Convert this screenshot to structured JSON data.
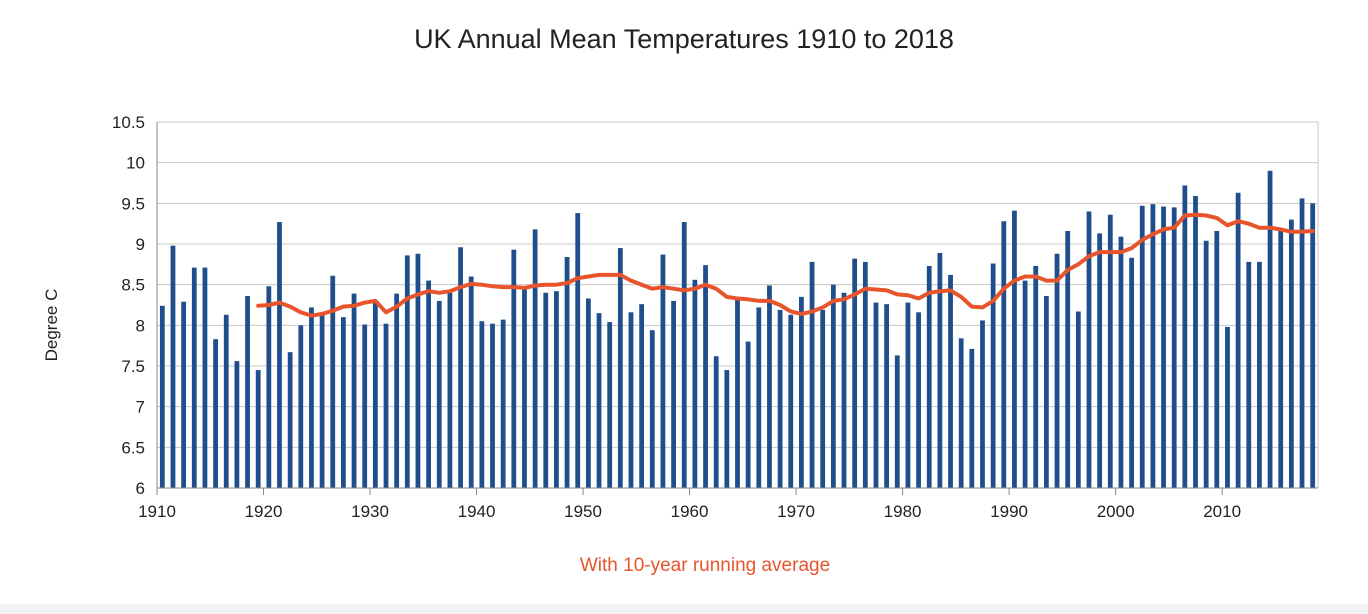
{
  "colors": {
    "bar": "#1f4e8c",
    "line": "#e8542b",
    "grid": "#c8c8c8",
    "note": "#e8542b"
  },
  "chart_data": {
    "type": "bar",
    "title": "UK Annual Mean Temperatures 1910 to 2018",
    "ylabel": "Degree C",
    "xlabel": "",
    "note": "With 10-year running average",
    "ylim": [
      6,
      10.5
    ],
    "yticks": [
      "10.5",
      "10",
      "9.5",
      "9",
      "8.5",
      "8",
      "7.5",
      "7",
      "6.5",
      "6"
    ],
    "xticks": [
      "1910",
      "1920",
      "1930",
      "1940",
      "1950",
      "1960",
      "1970",
      "1980",
      "1990",
      "2000",
      "2010"
    ],
    "grid": true,
    "series": [
      {
        "type": "bar",
        "start_year": 1910,
        "values": [
          8.24,
          8.98,
          8.29,
          8.71,
          8.71,
          7.83,
          8.13,
          7.56,
          8.36,
          7.45,
          8.48,
          9.27,
          7.67,
          8.0,
          8.22,
          8.15,
          8.61,
          8.1,
          8.39,
          8.01,
          8.3,
          8.02,
          8.39,
          8.86,
          8.88,
          8.55,
          8.3,
          8.4,
          8.96,
          8.6,
          8.05,
          8.02,
          8.07,
          8.93,
          8.46,
          9.18,
          8.4,
          8.42,
          8.84,
          9.38,
          8.33,
          8.15,
          8.04,
          8.95,
          8.16,
          8.26,
          7.94,
          8.87,
          8.3,
          9.27,
          8.56,
          8.74,
          7.62,
          7.45,
          8.35,
          7.8,
          8.22,
          8.49,
          8.19,
          8.13,
          8.35,
          8.78,
          8.19,
          8.5,
          8.4,
          8.82,
          8.78,
          8.28,
          8.26,
          7.63,
          8.28,
          8.16,
          8.73,
          8.89,
          8.62,
          7.84,
          7.71,
          8.06,
          8.76,
          9.28,
          9.41,
          8.55,
          8.73,
          8.36,
          8.88,
          9.16,
          8.17,
          9.4,
          9.13,
          9.36,
          9.09,
          8.83,
          9.47,
          9.49,
          9.46,
          9.45,
          9.72,
          9.59,
          9.04,
          9.16,
          7.98,
          9.63,
          8.78,
          8.78,
          9.9,
          9.16,
          9.3,
          9.56,
          9.5
        ]
      },
      {
        "type": "line",
        "start_year": 1919,
        "values": [
          8.24,
          8.25,
          8.28,
          8.23,
          8.16,
          8.12,
          8.14,
          8.18,
          8.23,
          8.24,
          8.28,
          8.3,
          8.16,
          8.23,
          8.33,
          8.38,
          8.42,
          8.4,
          8.42,
          8.47,
          8.51,
          8.5,
          8.48,
          8.47,
          8.47,
          8.46,
          8.49,
          8.5,
          8.5,
          8.52,
          8.58,
          8.6,
          8.62,
          8.62,
          8.62,
          8.55,
          8.5,
          8.45,
          8.47,
          8.45,
          8.43,
          8.45,
          8.5,
          8.45,
          8.35,
          8.33,
          8.32,
          8.3,
          8.3,
          8.25,
          8.17,
          8.14,
          8.17,
          8.22,
          8.3,
          8.32,
          8.38,
          8.45,
          8.44,
          8.43,
          8.38,
          8.37,
          8.33,
          8.4,
          8.42,
          8.43,
          8.35,
          8.23,
          8.22,
          8.3,
          8.45,
          8.55,
          8.6,
          8.6,
          8.55,
          8.55,
          8.68,
          8.75,
          8.85,
          8.9,
          8.9,
          8.9,
          8.95,
          9.05,
          9.12,
          9.18,
          9.2,
          9.35,
          9.36,
          9.35,
          9.32,
          9.23,
          9.28,
          9.25,
          9.2,
          9.2,
          9.18,
          9.15,
          9.15,
          9.16
        ]
      }
    ]
  }
}
